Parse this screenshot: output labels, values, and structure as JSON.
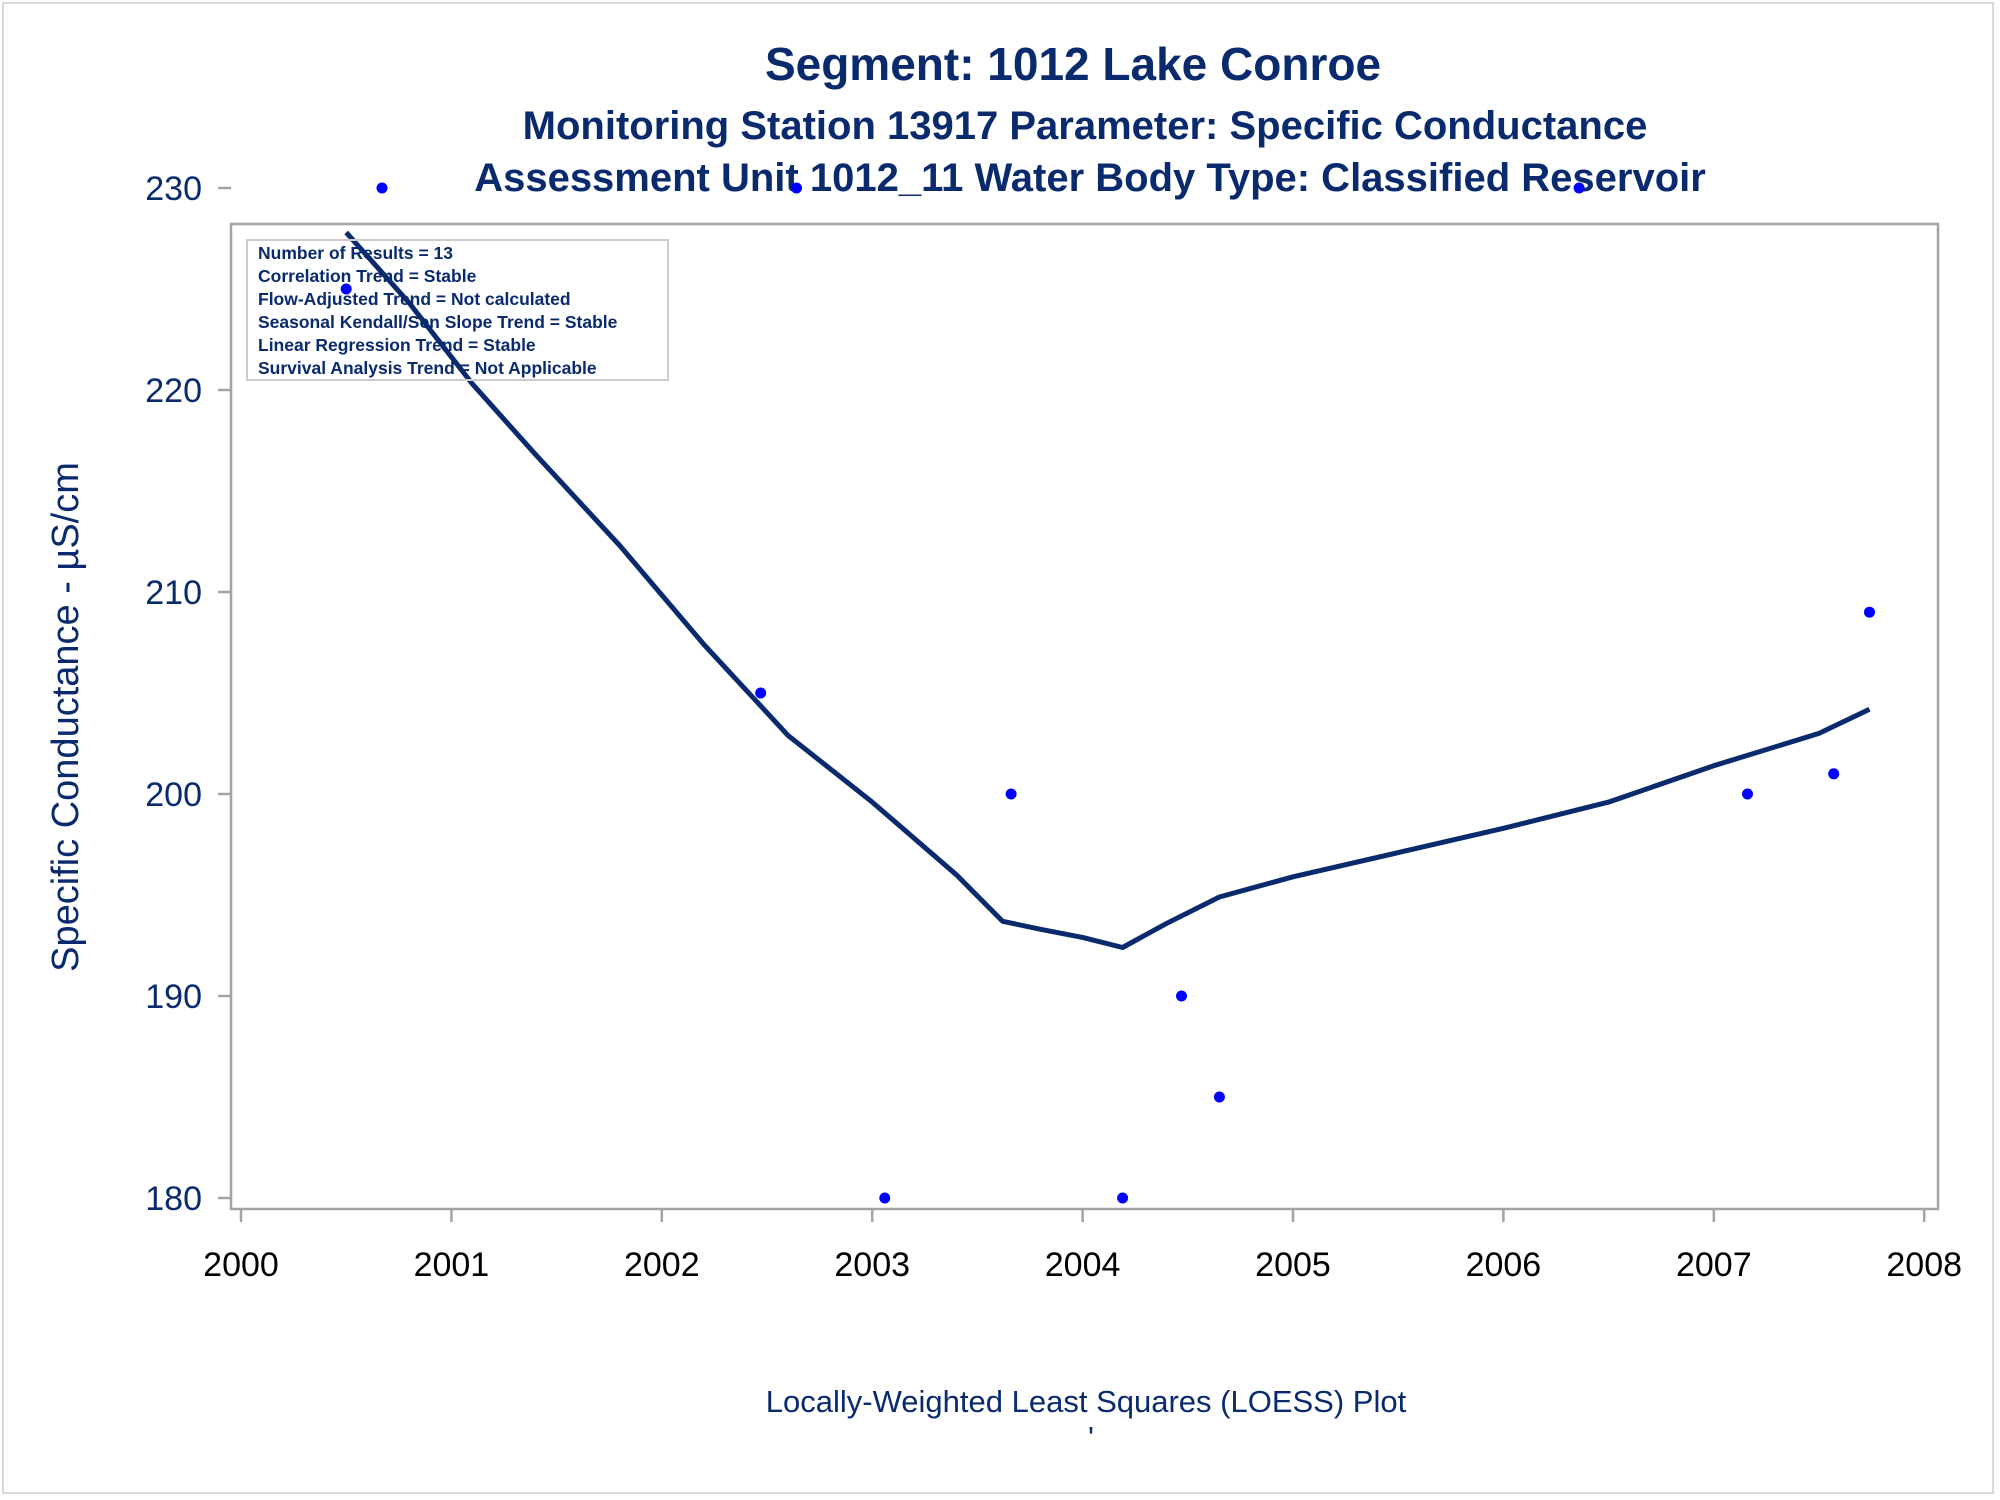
{
  "chart_data": {
    "type": "scatter",
    "title": "Segment: 1012  Lake Conroe",
    "subtitle_1": "Monitoring Station 13917 Parameter: Specific Conductance",
    "subtitle_2": "Assessment Unit 1012_11   Water Body Type: Classified Reservoir",
    "ylabel": "Specific Conductance -  µS/cm",
    "xlabel": "",
    "footnote": "Locally-Weighted Least Squares (LOESS) Plot",
    "footnote_mark": "'",
    "xlim": [
      2000,
      2008
    ],
    "ylim": [
      180,
      230
    ],
    "x_ticks": [
      "2000",
      "2001",
      "2002",
      "2003",
      "2004",
      "2005",
      "2006",
      "2007",
      "2008"
    ],
    "y_ticks": [
      "180",
      "190",
      "200",
      "210",
      "220",
      "230"
    ],
    "stats_box": [
      "Number of Results = 13",
      "Correlation Trend = Stable",
      "Flow-Adjusted Trend = Not calculated",
      "Seasonal Kendall/Sen Slope Trend = Stable",
      "Linear Regression Trend = Stable",
      "Survival Analysis Trend = Not Applicable"
    ],
    "series": [
      {
        "kind": "points",
        "color": "#0000ff",
        "x": [
          2000.5,
          2000.67,
          2002.47,
          2002.64,
          2003.06,
          2003.66,
          2004.19,
          2004.47,
          2004.65,
          2006.36,
          2007.16,
          2007.57,
          2007.74
        ],
        "y": [
          225,
          230,
          205,
          230,
          180,
          200,
          180,
          190,
          185,
          230,
          200,
          201,
          209
        ]
      },
      {
        "kind": "loess-line",
        "color": "#0a2a6e",
        "x": [
          2000.5,
          2000.8,
          2001.1,
          2001.4,
          2001.8,
          2002.2,
          2002.6,
          2003.0,
          2003.4,
          2003.62,
          2003.8,
          2004.0,
          2004.19,
          2004.4,
          2004.65,
          2005.0,
          2005.5,
          2006.0,
          2006.5,
          2007.0,
          2007.5,
          2007.74
        ],
        "y": [
          227.8,
          224.3,
          220.3,
          216.8,
          212.3,
          207.4,
          202.9,
          199.6,
          196.0,
          193.7,
          193.3,
          192.9,
          192.4,
          193.6,
          194.9,
          195.9,
          197.1,
          198.3,
          199.6,
          201.4,
          203.0,
          204.2
        ]
      }
    ]
  }
}
